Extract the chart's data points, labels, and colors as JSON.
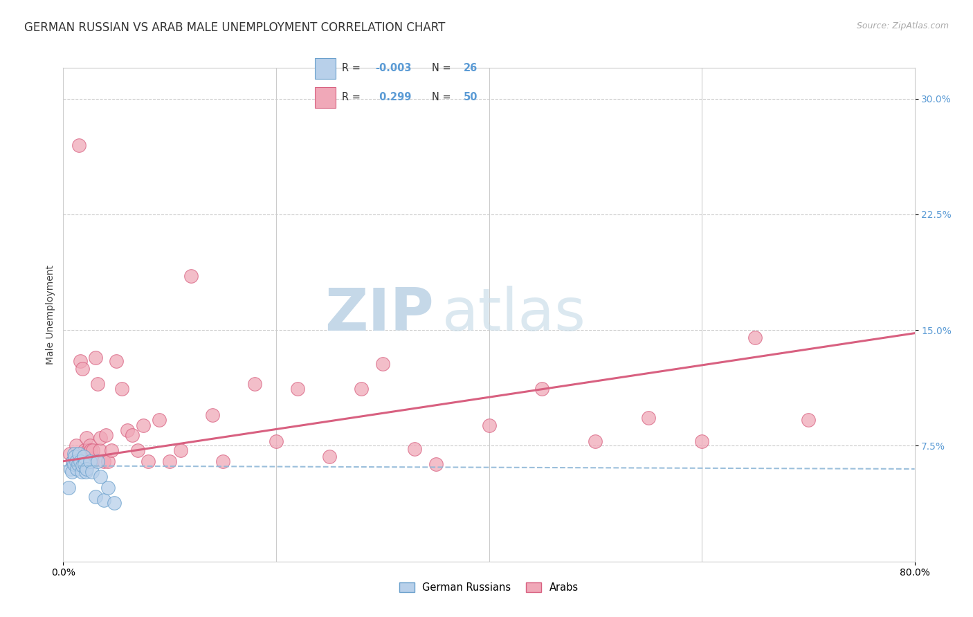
{
  "title": "GERMAN RUSSIAN VS ARAB MALE UNEMPLOYMENT CORRELATION CHART",
  "source": "Source: ZipAtlas.com",
  "ylabel": "Male Unemployment",
  "xlim": [
    0.0,
    0.8
  ],
  "ylim": [
    0.0,
    0.32
  ],
  "yticks": [
    0.075,
    0.15,
    0.225,
    0.3
  ],
  "ytick_labels": [
    "7.5%",
    "15.0%",
    "22.5%",
    "30.0%"
  ],
  "xtick_vals": [
    0.0,
    0.8
  ],
  "xtick_labels": [
    "0.0%",
    "80.0%"
  ],
  "legend_r1": "-0.003",
  "legend_n1": "26",
  "legend_r2": "0.299",
  "legend_n2": "50",
  "color_blue_fill": "#b8d0ea",
  "color_blue_edge": "#6aa0cc",
  "color_pink_fill": "#f0a8b8",
  "color_pink_edge": "#d86080",
  "color_blue_line": "#90b8d8",
  "color_pink_line": "#d86080",
  "color_axis_blue": "#5b9bd5",
  "watermark_zip": "#c8dcea",
  "watermark_atlas": "#c8dcea",
  "grid_color": "#cccccc",
  "background": "#ffffff",
  "title_fontsize": 12,
  "label_fontsize": 10,
  "tick_fontsize": 10,
  "gr_x": [
    0.005,
    0.007,
    0.008,
    0.009,
    0.01,
    0.01,
    0.011,
    0.012,
    0.013,
    0.014,
    0.015,
    0.016,
    0.017,
    0.018,
    0.019,
    0.02,
    0.021,
    0.022,
    0.025,
    0.027,
    0.03,
    0.032,
    0.035,
    0.038,
    0.042,
    0.048
  ],
  "gr_y": [
    0.048,
    0.06,
    0.058,
    0.065,
    0.07,
    0.063,
    0.068,
    0.065,
    0.06,
    0.063,
    0.07,
    0.065,
    0.058,
    0.062,
    0.068,
    0.063,
    0.058,
    0.06,
    0.065,
    0.058,
    0.042,
    0.065,
    0.055,
    0.04,
    0.048,
    0.038
  ],
  "arab_x": [
    0.006,
    0.009,
    0.012,
    0.014,
    0.015,
    0.016,
    0.018,
    0.02,
    0.022,
    0.023,
    0.025,
    0.026,
    0.027,
    0.028,
    0.03,
    0.032,
    0.034,
    0.035,
    0.038,
    0.04,
    0.042,
    0.045,
    0.05,
    0.055,
    0.06,
    0.065,
    0.07,
    0.075,
    0.08,
    0.09,
    0.1,
    0.11,
    0.12,
    0.14,
    0.15,
    0.18,
    0.2,
    0.22,
    0.25,
    0.28,
    0.3,
    0.33,
    0.35,
    0.4,
    0.45,
    0.5,
    0.55,
    0.6,
    0.65,
    0.7
  ],
  "arab_y": [
    0.07,
    0.065,
    0.075,
    0.068,
    0.27,
    0.13,
    0.125,
    0.072,
    0.08,
    0.072,
    0.075,
    0.072,
    0.065,
    0.072,
    0.132,
    0.115,
    0.072,
    0.08,
    0.065,
    0.082,
    0.065,
    0.072,
    0.13,
    0.112,
    0.085,
    0.082,
    0.072,
    0.088,
    0.065,
    0.092,
    0.065,
    0.072,
    0.185,
    0.095,
    0.065,
    0.115,
    0.078,
    0.112,
    0.068,
    0.112,
    0.128,
    0.073,
    0.063,
    0.088,
    0.112,
    0.078,
    0.093,
    0.078,
    0.145,
    0.092
  ]
}
